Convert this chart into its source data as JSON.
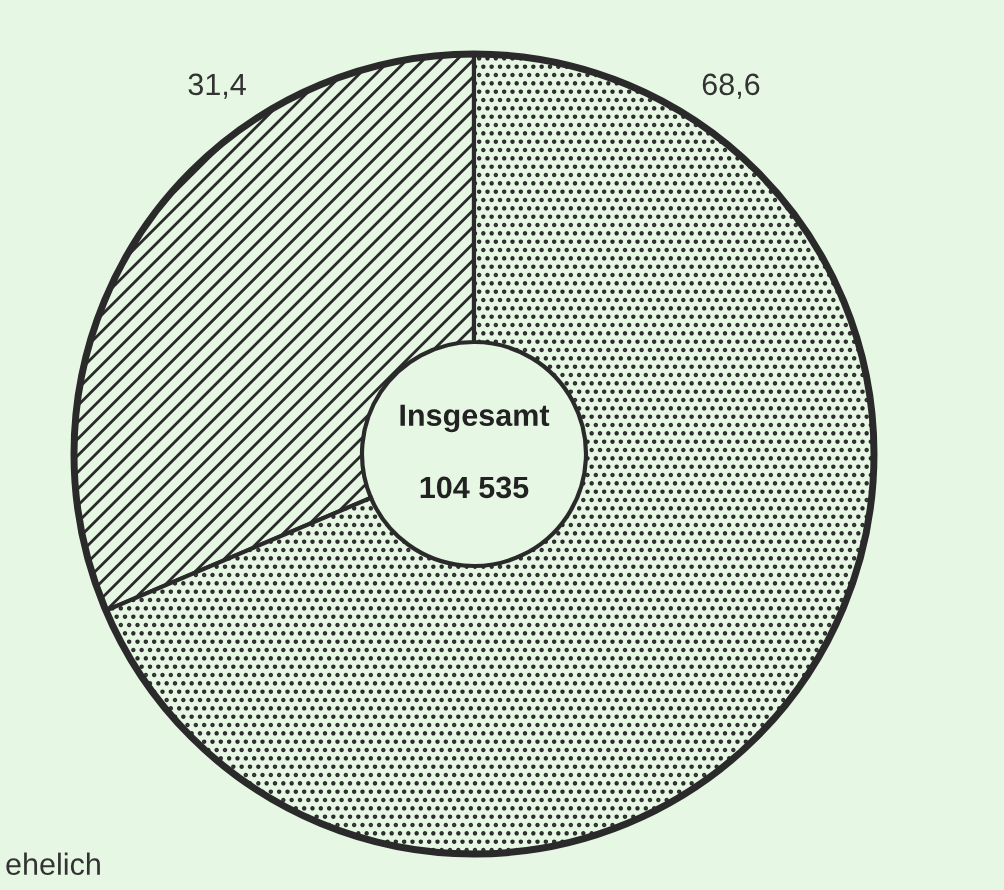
{
  "chart_data": {
    "type": "donut",
    "categories": [
      null,
      null
    ],
    "values": [
      31.4,
      68.6
    ],
    "colors": [
      "#2a2a2a",
      "#2a2a2a"
    ],
    "value_labels": [
      "31,4",
      "68,6"
    ],
    "annotations": [
      "Insgesamt",
      "104 535",
      "ehelich"
    ],
    "legend": false
  }
}
